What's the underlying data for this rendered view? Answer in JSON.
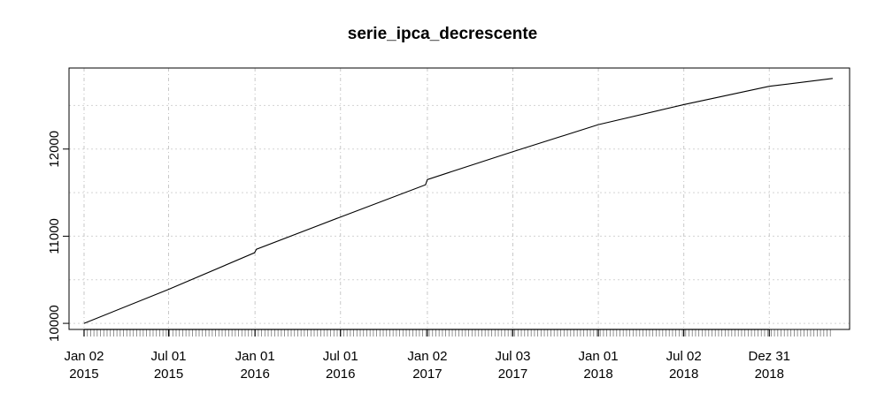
{
  "chart_data": {
    "type": "line",
    "title": "serie_ipca_decrescente",
    "xlabel": "",
    "ylabel": "",
    "x_axis_kind": "date",
    "y_ticks": [
      {
        "value": 10000,
        "label": "10000"
      },
      {
        "value": 11000,
        "label": "11000"
      },
      {
        "value": 12000,
        "label": "12000"
      }
    ],
    "y_gridlines": [
      10000,
      10500,
      11000,
      11500,
      12000,
      12500
    ],
    "ylim": [
      9930,
      12930
    ],
    "x_ticks": [
      {
        "date": "2015-01-02",
        "line1": "Jan 02",
        "line2": "2015"
      },
      {
        "date": "2015-07-01",
        "line1": "Jul 01",
        "line2": "2015"
      },
      {
        "date": "2016-01-01",
        "line1": "Jan 01",
        "line2": "2016"
      },
      {
        "date": "2016-07-01",
        "line1": "Jul 01",
        "line2": "2016"
      },
      {
        "date": "2017-01-02",
        "line1": "Jan 02",
        "line2": "2017"
      },
      {
        "date": "2017-07-03",
        "line1": "Jul 03",
        "line2": "2017"
      },
      {
        "date": "2018-01-01",
        "line1": "Jan 01",
        "line2": "2018"
      },
      {
        "date": "2018-07-02",
        "line1": "Jul 02",
        "line2": "2018"
      },
      {
        "date": "2018-12-31",
        "line1": "Dez 31",
        "line2": "2018"
      }
    ],
    "xlim": [
      "2014-12-01",
      "2019-06-20"
    ],
    "grid": true,
    "series": [
      {
        "x": [
          "2015-01-02",
          "2015-07-01",
          "2015-12-31",
          "2016-01-04",
          "2016-07-01",
          "2016-12-29",
          "2017-01-02",
          "2017-07-03",
          "2018-01-01",
          "2018-07-02",
          "2018-12-31",
          "2019-05-15"
        ],
        "y": [
          10000,
          10390,
          10810,
          10850,
          11220,
          11590,
          11650,
          11970,
          12280,
          12510,
          12720,
          12810
        ]
      }
    ]
  }
}
